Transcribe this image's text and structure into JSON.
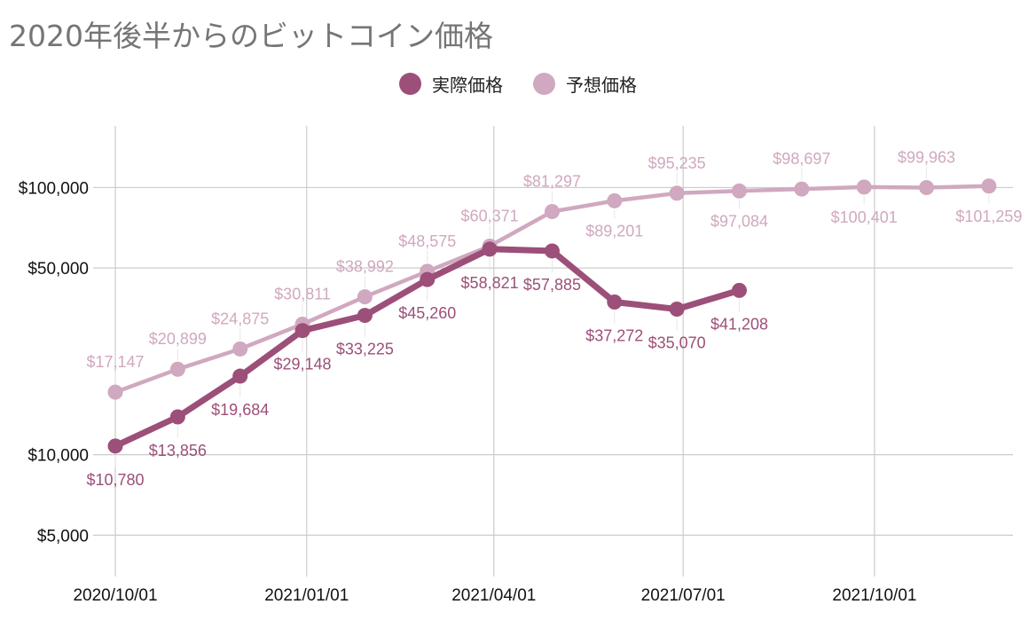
{
  "chart_data": {
    "type": "line",
    "title": "2020年後半からのビットコイン価格",
    "xlabel": "",
    "ylabel": "",
    "y_scale": "log",
    "ylim": [
      3500,
      170000
    ],
    "xlim": [
      "2020-10-01",
      "2021-12-15"
    ],
    "grid": true,
    "legend_position": "top",
    "x_ticks": [
      "2020-10-01",
      "2021-01-01",
      "2021-04-01",
      "2021-07-01",
      "2021-10-01"
    ],
    "x_tick_labels": [
      "2020/10/01",
      "2021/01/01",
      "2021/04/01",
      "2021/07/01",
      "2021/10/01"
    ],
    "y_ticks": [
      5000,
      10000,
      50000,
      100000
    ],
    "y_tick_labels": [
      "$5,000",
      "$10,000",
      "$50,000",
      "$100,000"
    ],
    "series": [
      {
        "name": "実際価格",
        "color": "#9C4F78",
        "points": [
          {
            "date": "2020-10-01",
            "value": 10780,
            "label": "$10,780",
            "label_pos": "below"
          },
          {
            "date": "2020-10-31",
            "value": 13856,
            "label": "$13,856",
            "label_pos": "below"
          },
          {
            "date": "2020-11-30",
            "value": 19684,
            "label": "$19,684",
            "label_pos": "below"
          },
          {
            "date": "2020-12-30",
            "value": 29148,
            "label": "$29,148",
            "label_pos": "below"
          },
          {
            "date": "2021-01-29",
            "value": 33225,
            "label": "$33,225",
            "label_pos": "below"
          },
          {
            "date": "2021-02-28",
            "value": 45260,
            "label": "$45,260",
            "label_pos": "below"
          },
          {
            "date": "2021-03-30",
            "value": 58821,
            "label": "$58,821",
            "label_pos": "below"
          },
          {
            "date": "2021-04-29",
            "value": 57885,
            "label": "$57,885",
            "label_pos": "below"
          },
          {
            "date": "2021-05-29",
            "value": 37272,
            "label": "$37,272",
            "label_pos": "below"
          },
          {
            "date": "2021-06-28",
            "value": 35070,
            "label": "$35,070",
            "label_pos": "below"
          },
          {
            "date": "2021-07-28",
            "value": 41208,
            "label": "$41,208",
            "label_pos": "below"
          }
        ]
      },
      {
        "name": "予想価格",
        "color": "#D0A8BF",
        "points": [
          {
            "date": "2020-10-01",
            "value": 17147,
            "label": "$17,147",
            "label_pos": "above"
          },
          {
            "date": "2020-10-31",
            "value": 20899,
            "label": "$20,899",
            "label_pos": "above"
          },
          {
            "date": "2020-11-30",
            "value": 24875,
            "label": "$24,875",
            "label_pos": "above"
          },
          {
            "date": "2020-12-30",
            "value": 30811,
            "label": "$30,811",
            "label_pos": "above"
          },
          {
            "date": "2021-01-29",
            "value": 38992,
            "label": "$38,992",
            "label_pos": "above"
          },
          {
            "date": "2021-02-28",
            "value": 48575,
            "label": "$48,575",
            "label_pos": "above"
          },
          {
            "date": "2021-03-30",
            "value": 60371,
            "label": "$60,371",
            "label_pos": "above"
          },
          {
            "date": "2021-04-29",
            "value": 81297,
            "label": "$81,297",
            "label_pos": "above"
          },
          {
            "date": "2021-05-29",
            "value": 89201,
            "label": "$89,201",
            "label_pos": "below"
          },
          {
            "date": "2021-06-28",
            "value": 95235,
            "label": "$95,235",
            "label_pos": "above"
          },
          {
            "date": "2021-07-28",
            "value": 97084,
            "label": "$97,084",
            "label_pos": "below"
          },
          {
            "date": "2021-08-27",
            "value": 98697,
            "label": "$98,697",
            "label_pos": "above"
          },
          {
            "date": "2021-09-26",
            "value": 100401,
            "label": "$100,401",
            "label_pos": "below"
          },
          {
            "date": "2021-10-26",
            "value": 99963,
            "label": "$99,963",
            "label_pos": "above"
          },
          {
            "date": "2021-11-25",
            "value": 101259,
            "label": "$101,259",
            "label_pos": "below"
          }
        ]
      }
    ]
  }
}
